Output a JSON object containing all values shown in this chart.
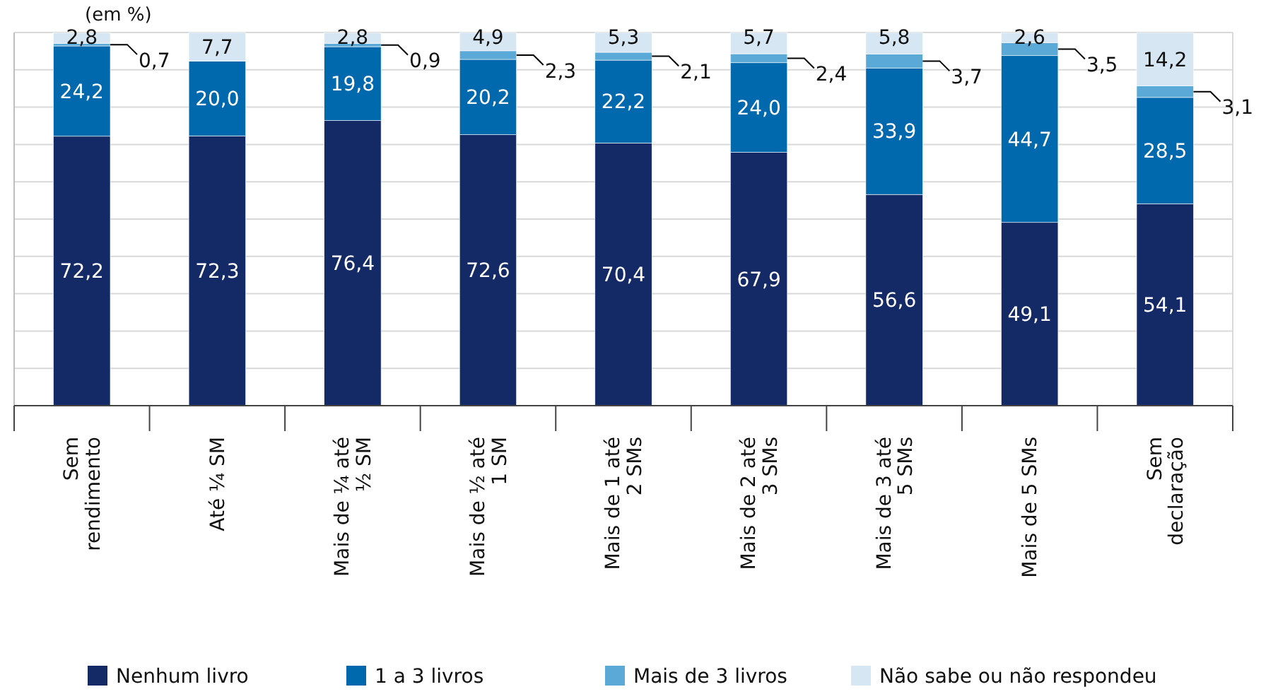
{
  "chart_data": {
    "type": "bar",
    "title": "(em %)",
    "stacked": true,
    "grid": "y",
    "tick_labels": "x",
    "legend": "bottom",
    "categories": [
      "Sem\nrendimento",
      "Até ¼ SM",
      "Mais de ¼ até\n½ SM",
      "Mais de ½ até\n1  SM",
      "Mais de 1 até\n2  SMs",
      "Mais de 2 até\n3  SMs",
      "Mais de 3 até\n5  SMs",
      "Mais de 5  SMs",
      "Sem\ndeclaração"
    ],
    "ylim": [
      0,
      100
    ],
    "yticks": [
      {
        "value": 0,
        "label": null
      },
      {
        "value": 10,
        "label": null
      },
      {
        "value": 20,
        "label": null
      },
      {
        "value": 30,
        "label": null
      },
      {
        "value": 40,
        "label": null
      },
      {
        "value": 50,
        "label": null
      },
      {
        "value": 60,
        "label": null
      },
      {
        "value": 70,
        "label": null
      },
      {
        "value": 80,
        "label": null
      },
      {
        "value": 90,
        "label": null
      },
      {
        "value": 100,
        "label": null
      }
    ],
    "series": [
      {
        "name": "Nenhum livro",
        "color": "#142a66",
        "values": [
          72.2,
          72.3,
          76.4,
          72.6,
          70.4,
          67.9,
          56.6,
          49.1,
          54.1
        ],
        "value_labels": [
          "72,2",
          "72,3",
          "76,4",
          "72,6",
          "70,4",
          "67,9",
          "56,6",
          "49,1",
          "54,1"
        ]
      },
      {
        "name": "1 a 3 livros",
        "color": "#0068ad",
        "values": [
          24.2,
          20.0,
          19.8,
          20.2,
          22.2,
          24.0,
          33.9,
          44.7,
          28.5
        ],
        "value_labels": [
          "24,2",
          "20,0",
          "19,8",
          "20,2",
          "22,2",
          "24,0",
          "33,9",
          "44,7",
          "28,5"
        ]
      },
      {
        "name": "Mais de 3 livros",
        "color": "#5ba9d6",
        "values": [
          0.7,
          null,
          0.9,
          2.3,
          2.1,
          2.4,
          3.7,
          3.5,
          3.1
        ],
        "value_labels": [
          "0,7",
          null,
          "0,9",
          "2,3",
          "2,1",
          "2,4",
          "3,7",
          "3,5",
          "3,1"
        ]
      },
      {
        "name": "Não sabe ou não respondeu",
        "color": "#d6e6f2",
        "values": [
          2.8,
          7.7,
          2.8,
          4.9,
          5.3,
          5.7,
          5.8,
          2.6,
          14.2
        ],
        "value_labels": [
          "2,8",
          "7,7",
          "2,8",
          "4,9",
          "5,3",
          "5,7",
          "5,8",
          "2,6",
          "14,2"
        ]
      }
    ]
  }
}
